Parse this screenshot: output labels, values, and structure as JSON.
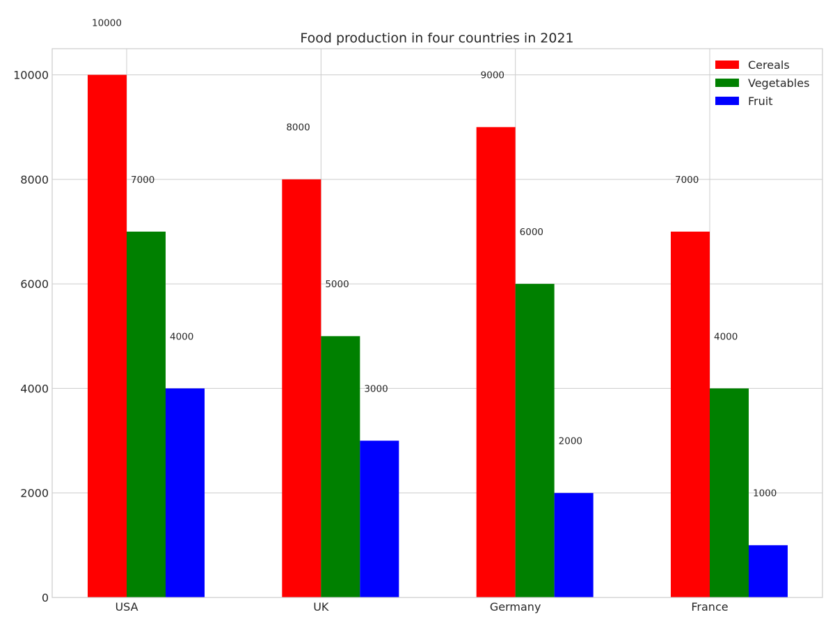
{
  "chart_data": {
    "type": "bar",
    "title": "Food production in four countries in 2021",
    "xlabel": "",
    "ylabel": "",
    "categories": [
      "USA",
      "UK",
      "Germany",
      "France"
    ],
    "series": [
      {
        "name": "Cereals",
        "color": "#ff0000",
        "values": [
          10000,
          8000,
          9000,
          7000
        ]
      },
      {
        "name": "Vegetables",
        "color": "#008000",
        "values": [
          7000,
          5000,
          6000,
          4000
        ]
      },
      {
        "name": "Fruit",
        "color": "#0000ff",
        "values": [
          4000,
          3000,
          2000,
          1000
        ]
      }
    ],
    "ylim": [
      0,
      10500
    ],
    "yticks": [
      0,
      2000,
      4000,
      6000,
      8000,
      10000
    ],
    "grid": true,
    "legend_position": "top-right"
  }
}
